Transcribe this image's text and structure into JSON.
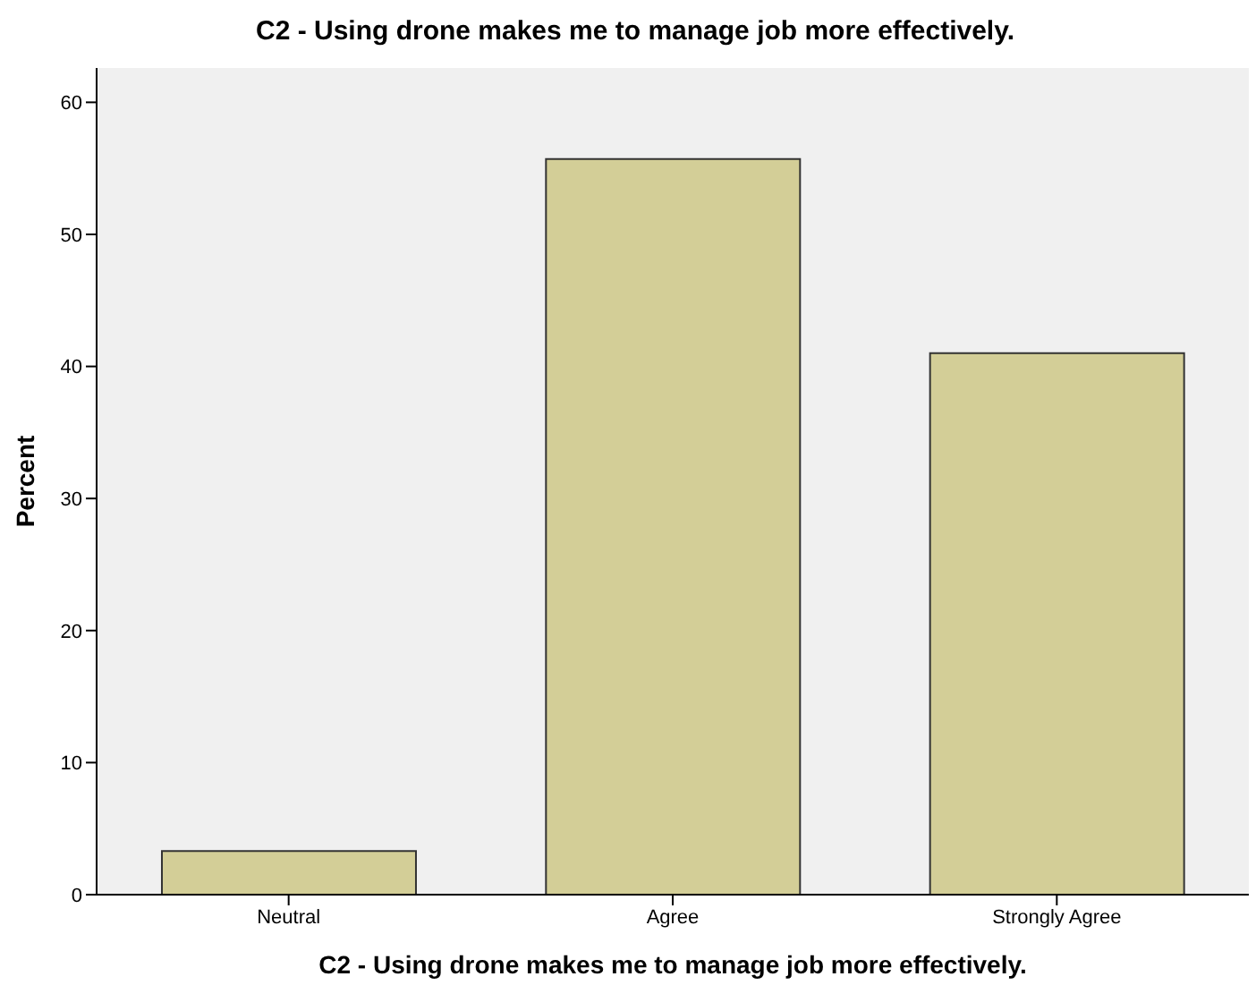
{
  "chart_data": {
    "type": "bar",
    "title": "C2 - Using drone makes me to manage job more effectively.",
    "xlabel": "C2 - Using drone makes me to manage job more effectively.",
    "ylabel": "Percent",
    "categories": [
      "Neutral",
      "Agree",
      "Strongly Agree"
    ],
    "values": [
      3.3,
      55.7,
      41.0
    ],
    "color": "#d3ce97",
    "ylim": [
      0,
      62.6
    ],
    "yticks": [
      0,
      10,
      20,
      30,
      40,
      50,
      60
    ]
  }
}
